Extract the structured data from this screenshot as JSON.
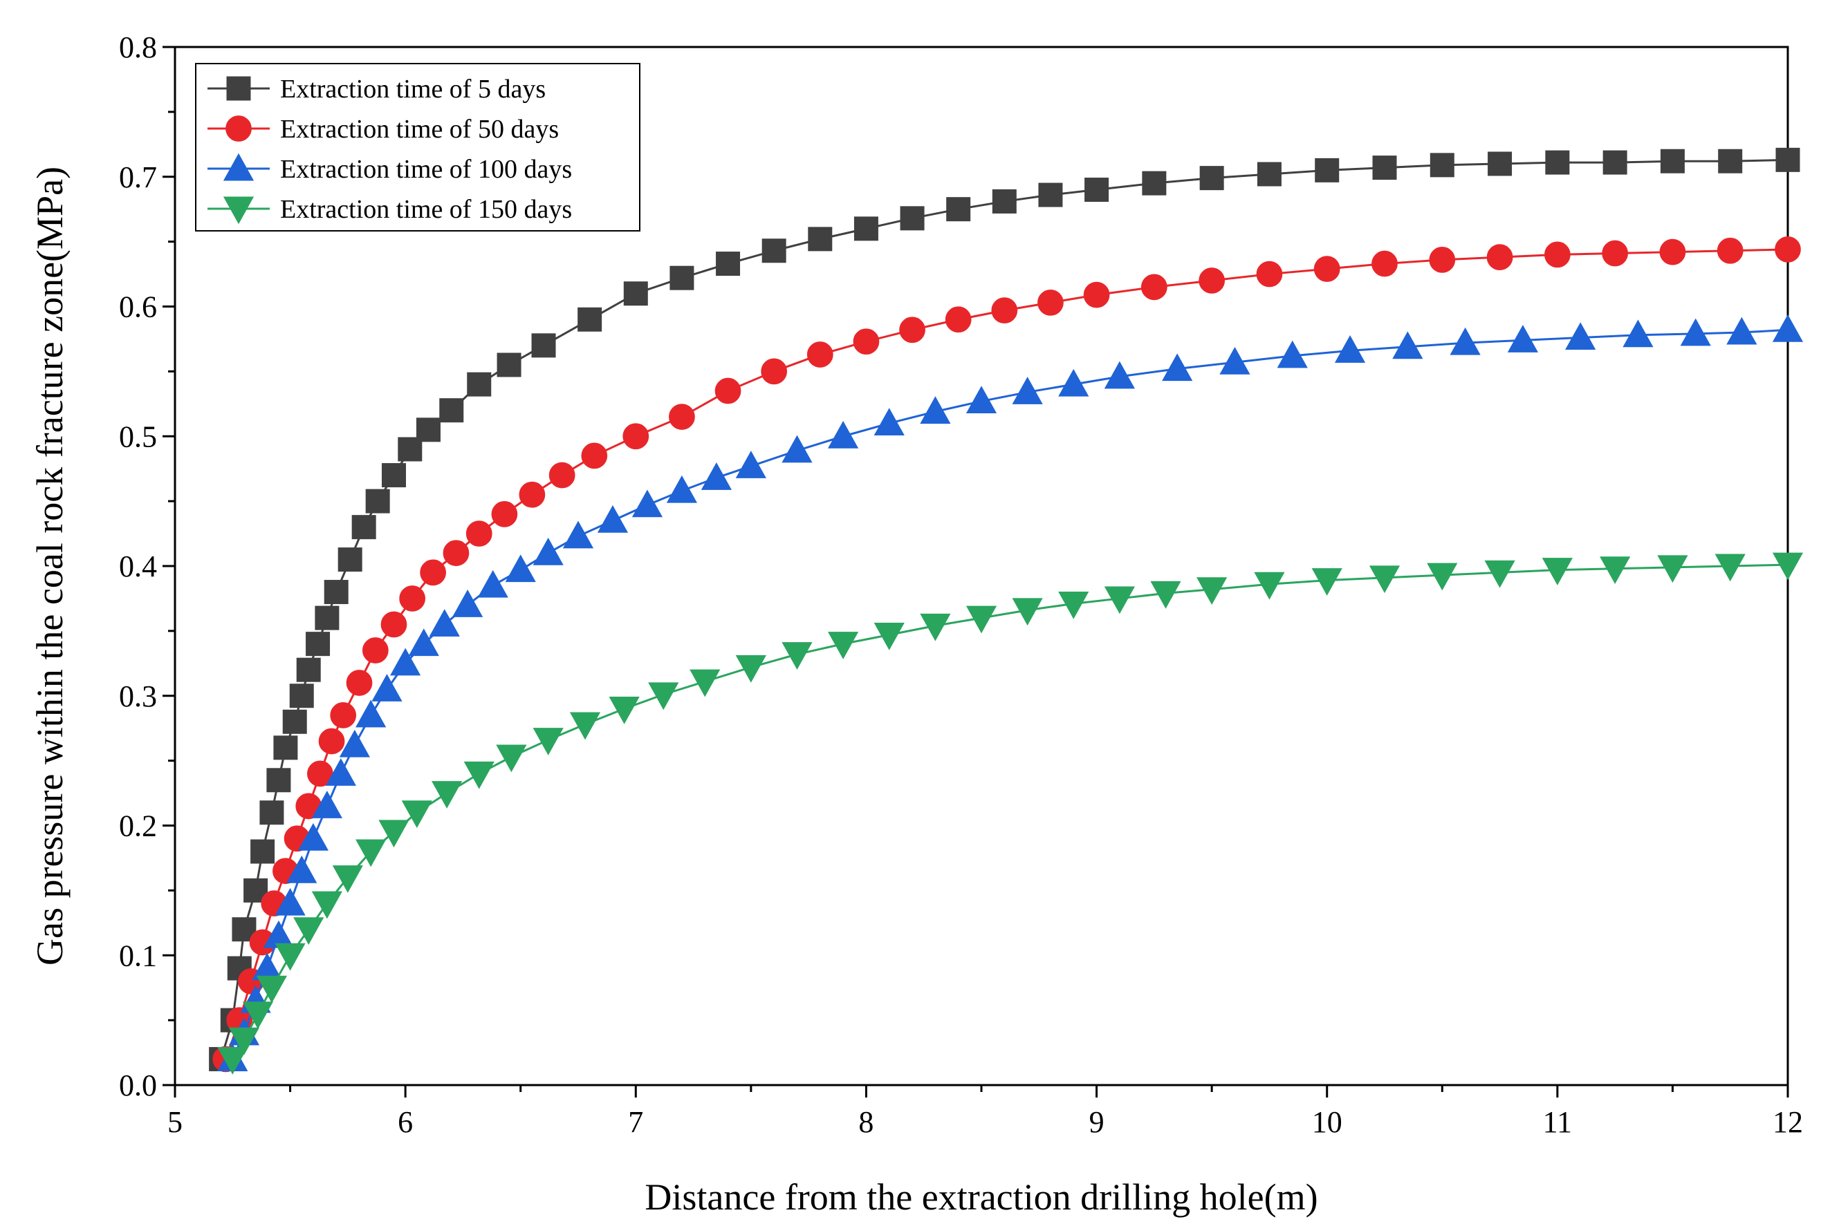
{
  "chart_data": {
    "type": "line",
    "title": "",
    "xlabel": "Distance from the extraction drilling hole(m)",
    "ylabel": "Gas pressure within the coal rock fracture zone(MPa)",
    "xlim": [
      5,
      12
    ],
    "ylim": [
      0,
      0.8
    ],
    "x_ticks": [
      "5",
      "6",
      "7",
      "8",
      "9",
      "10",
      "11",
      "12"
    ],
    "y_ticks": [
      "0.0",
      "0.1",
      "0.2",
      "0.3",
      "0.4",
      "0.5",
      "0.6",
      "0.7",
      "0.8"
    ],
    "grid": false,
    "legend_position": "top-left",
    "series": [
      {
        "name": "Extraction time of 5 days",
        "color": "#404040",
        "marker": "square",
        "x": [
          5.2,
          5.25,
          5.28,
          5.3,
          5.35,
          5.38,
          5.42,
          5.45,
          5.48,
          5.52,
          5.55,
          5.58,
          5.62,
          5.66,
          5.7,
          5.76,
          5.82,
          5.88,
          5.95,
          6.02,
          6.1,
          6.2,
          6.32,
          6.45,
          6.6,
          6.8,
          7.0,
          7.2,
          7.4,
          7.6,
          7.8,
          8.0,
          8.2,
          8.4,
          8.6,
          8.8,
          9.0,
          9.25,
          9.5,
          9.75,
          10.0,
          10.25,
          10.5,
          10.75,
          11.0,
          11.25,
          11.5,
          11.75,
          12.0
        ],
        "values": [
          0.02,
          0.05,
          0.09,
          0.12,
          0.15,
          0.18,
          0.21,
          0.235,
          0.26,
          0.28,
          0.3,
          0.32,
          0.34,
          0.36,
          0.38,
          0.405,
          0.43,
          0.45,
          0.47,
          0.49,
          0.505,
          0.52,
          0.54,
          0.555,
          0.57,
          0.59,
          0.61,
          0.622,
          0.633,
          0.643,
          0.652,
          0.66,
          0.668,
          0.675,
          0.681,
          0.686,
          0.69,
          0.695,
          0.699,
          0.702,
          0.705,
          0.707,
          0.709,
          0.71,
          0.711,
          0.711,
          0.712,
          0.712,
          0.713
        ]
      },
      {
        "name": "Extraction time of 50 days",
        "color": "#e8262a",
        "marker": "circle",
        "x": [
          5.22,
          5.28,
          5.33,
          5.38,
          5.43,
          5.48,
          5.53,
          5.58,
          5.63,
          5.68,
          5.73,
          5.8,
          5.87,
          5.95,
          6.03,
          6.12,
          6.22,
          6.32,
          6.43,
          6.55,
          6.68,
          6.82,
          7.0,
          7.2,
          7.4,
          7.6,
          7.8,
          8.0,
          8.2,
          8.4,
          8.6,
          8.8,
          9.0,
          9.25,
          9.5,
          9.75,
          10.0,
          10.25,
          10.5,
          10.75,
          11.0,
          11.25,
          11.5,
          11.75,
          12.0
        ],
        "values": [
          0.02,
          0.05,
          0.08,
          0.11,
          0.14,
          0.165,
          0.19,
          0.215,
          0.24,
          0.265,
          0.285,
          0.31,
          0.335,
          0.355,
          0.375,
          0.395,
          0.41,
          0.425,
          0.44,
          0.455,
          0.47,
          0.485,
          0.5,
          0.515,
          0.535,
          0.55,
          0.563,
          0.573,
          0.582,
          0.59,
          0.597,
          0.603,
          0.609,
          0.615,
          0.62,
          0.625,
          0.629,
          0.633,
          0.636,
          0.638,
          0.64,
          0.641,
          0.642,
          0.643,
          0.644
        ]
      },
      {
        "name": "Extraction time of 100 days",
        "color": "#1f63d6",
        "marker": "triangle-up",
        "x": [
          5.25,
          5.3,
          5.35,
          5.4,
          5.45,
          5.5,
          5.55,
          5.6,
          5.66,
          5.72,
          5.78,
          5.85,
          5.92,
          6.0,
          6.08,
          6.17,
          6.27,
          6.38,
          6.5,
          6.62,
          6.75,
          6.9,
          7.05,
          7.2,
          7.35,
          7.5,
          7.7,
          7.9,
          8.1,
          8.3,
          8.5,
          8.7,
          8.9,
          9.1,
          9.35,
          9.6,
          9.85,
          10.1,
          10.35,
          10.6,
          10.85,
          11.1,
          11.35,
          11.6,
          11.8,
          12.0
        ],
        "values": [
          0.02,
          0.04,
          0.065,
          0.09,
          0.115,
          0.14,
          0.165,
          0.19,
          0.215,
          0.24,
          0.262,
          0.285,
          0.305,
          0.325,
          0.34,
          0.355,
          0.37,
          0.385,
          0.397,
          0.41,
          0.423,
          0.435,
          0.447,
          0.458,
          0.468,
          0.477,
          0.489,
          0.5,
          0.51,
          0.519,
          0.527,
          0.534,
          0.54,
          0.546,
          0.552,
          0.557,
          0.562,
          0.566,
          0.569,
          0.572,
          0.574,
          0.576,
          0.578,
          0.579,
          0.58,
          0.582
        ]
      },
      {
        "name": "Extraction time of 150 days",
        "color": "#2aa55e",
        "marker": "triangle-down",
        "x": [
          5.25,
          5.3,
          5.36,
          5.42,
          5.5,
          5.58,
          5.66,
          5.75,
          5.85,
          5.95,
          6.05,
          6.18,
          6.32,
          6.46,
          6.62,
          6.78,
          6.95,
          7.12,
          7.3,
          7.5,
          7.7,
          7.9,
          8.1,
          8.3,
          8.5,
          8.7,
          8.9,
          9.1,
          9.3,
          9.5,
          9.75,
          10.0,
          10.25,
          10.5,
          10.75,
          11.0,
          11.25,
          11.5,
          11.75,
          12.0
        ],
        "values": [
          0.02,
          0.035,
          0.055,
          0.075,
          0.1,
          0.12,
          0.14,
          0.16,
          0.18,
          0.195,
          0.21,
          0.225,
          0.24,
          0.253,
          0.266,
          0.278,
          0.29,
          0.301,
          0.311,
          0.322,
          0.332,
          0.34,
          0.347,
          0.354,
          0.36,
          0.366,
          0.371,
          0.375,
          0.379,
          0.382,
          0.386,
          0.389,
          0.391,
          0.393,
          0.395,
          0.397,
          0.398,
          0.399,
          0.4,
          0.401
        ]
      }
    ]
  }
}
